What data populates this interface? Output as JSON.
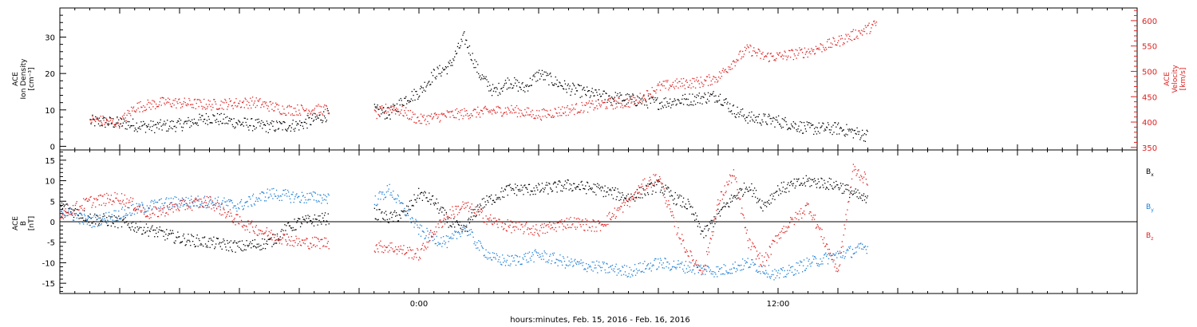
{
  "footer": {
    "xaxis_label": "hours:minutes, Feb. 15, 2016 - Feb. 16, 2016"
  },
  "chart_data": [
    {
      "type": "scatter",
      "panel": "plasma",
      "ylabel_left": [
        "ACE",
        "Ion Density",
        "[cm⁻³]"
      ],
      "ylabel_right": [
        "ACE",
        "Velocity",
        "[km/s]"
      ],
      "xlim_hours": [
        -12,
        24
      ],
      "ylim_left": [
        -1,
        38
      ],
      "ylim_right": [
        345,
        625
      ],
      "yticks_left": [
        0,
        10,
        20,
        30
      ],
      "yticks_right": [
        350,
        400,
        450,
        500,
        550,
        600
      ],
      "grid": false,
      "x_ticklabels": [
        {
          "hour": 0,
          "label": "0:00"
        },
        {
          "hour": 12,
          "label": "12:00"
        }
      ],
      "series": [
        {
          "axis": "left",
          "color": "#000000",
          "points": [
            [
              -11.0,
              7.0
            ],
            [
              -10.0,
              6.5
            ],
            [
              -9.0,
              5.5
            ],
            [
              -8.0,
              6.0
            ],
            [
              -7.0,
              8.0
            ],
            [
              -6.0,
              6.5
            ],
            [
              -5.0,
              5.5
            ],
            [
              -4.0,
              6.0
            ],
            [
              -3.0,
              9.0
            ],
            [
              -2.0,
              null
            ],
            [
              -1.5,
              10.0
            ],
            [
              -1.0,
              9.0
            ],
            [
              -0.5,
              13.0
            ],
            [
              0.0,
              15.0
            ],
            [
              0.5,
              20.0
            ],
            [
              1.0,
              22.0
            ],
            [
              1.5,
              30.0
            ],
            [
              2.0,
              20.0
            ],
            [
              2.5,
              15.0
            ],
            [
              3.0,
              18.0
            ],
            [
              3.5,
              16.0
            ],
            [
              4.0,
              20.0
            ],
            [
              5.0,
              16.0
            ],
            [
              6.0,
              14.0
            ],
            [
              7.0,
              13.0
            ],
            [
              8.0,
              12.0
            ],
            [
              9.0,
              13.0
            ],
            [
              10.0,
              14.0
            ],
            [
              10.5,
              10.0
            ],
            [
              11.0,
              8.0
            ],
            [
              12.0,
              7.0
            ],
            [
              13.0,
              5.0
            ],
            [
              14.0,
              5.0
            ],
            [
              15.0,
              3.0
            ]
          ]
        },
        {
          "axis": "right",
          "color": "#e02020",
          "points": [
            [
              -11.0,
              405
            ],
            [
              -10.0,
              400
            ],
            [
              -9.5,
              430
            ],
            [
              -8.5,
              440
            ],
            [
              -7.0,
              435
            ],
            [
              -5.5,
              440
            ],
            [
              -4.5,
              425
            ],
            [
              -3.5,
              425
            ],
            [
              -3.0,
              425
            ],
            [
              -2.0,
              null
            ],
            [
              -1.5,
              415
            ],
            [
              -1.0,
              430
            ],
            [
              -0.5,
              420
            ],
            [
              0.0,
              405
            ],
            [
              0.5,
              410
            ],
            [
              1.0,
              415
            ],
            [
              2.0,
              420
            ],
            [
              3.0,
              425
            ],
            [
              4.0,
              415
            ],
            [
              5.0,
              425
            ],
            [
              6.0,
              435
            ],
            [
              7.0,
              440
            ],
            [
              7.5,
              450
            ],
            [
              8.0,
              470
            ],
            [
              8.5,
              475
            ],
            [
              9.0,
              478
            ],
            [
              9.5,
              480
            ],
            [
              10.0,
              490
            ],
            [
              10.5,
              520
            ],
            [
              11.0,
              545
            ],
            [
              11.5,
              530
            ],
            [
              12.0,
              530
            ],
            [
              13.0,
              540
            ],
            [
              14.0,
              560
            ],
            [
              15.0,
              585
            ],
            [
              15.3,
              595
            ]
          ]
        }
      ]
    },
    {
      "type": "scatter",
      "panel": "magnetic-field",
      "ylabel_left": [
        "ACE",
        "B",
        "[nT]"
      ],
      "xlim_hours": [
        -12,
        24
      ],
      "ylim": [
        -17.5,
        17.5
      ],
      "yticks": [
        -15,
        -10,
        -5,
        0,
        5,
        10,
        15
      ],
      "zero_line": true,
      "grid": false,
      "x_ticklabels": [
        {
          "hour": 0,
          "label": "0:00"
        },
        {
          "hour": 12,
          "label": "12:00"
        }
      ],
      "legend": [
        {
          "label": "B",
          "sub": "x",
          "color": "#000000"
        },
        {
          "label": "B",
          "sub": "y",
          "color": "#1e7fd6"
        },
        {
          "label": "B",
          "sub": "z",
          "color": "#e02020"
        }
      ],
      "series": [
        {
          "name": "Bx",
          "color": "#000000",
          "points": [
            [
              -12.0,
              4.0
            ],
            [
              -11.0,
              1.0
            ],
            [
              -10.0,
              0.0
            ],
            [
              -9.0,
              -2.0
            ],
            [
              -8.0,
              -4.0
            ],
            [
              -7.0,
              -5.0
            ],
            [
              -6.0,
              -6.0
            ],
            [
              -5.0,
              -5.0
            ],
            [
              -4.5,
              -2.0
            ],
            [
              -4.0,
              0.0
            ],
            [
              -3.0,
              1.0
            ],
            [
              -2.5,
              null
            ],
            [
              -1.5,
              2.0
            ],
            [
              -1.0,
              1.0
            ],
            [
              -0.5,
              2.0
            ],
            [
              0.0,
              7.0
            ],
            [
              0.5,
              5.0
            ],
            [
              1.0,
              0.0
            ],
            [
              1.5,
              -2.0
            ],
            [
              2.0,
              4.0
            ],
            [
              2.5,
              6.0
            ],
            [
              3.0,
              8.0
            ],
            [
              4.0,
              8.0
            ],
            [
              5.0,
              9.0
            ],
            [
              6.0,
              8.0
            ],
            [
              7.0,
              6.0
            ],
            [
              8.0,
              9.0
            ],
            [
              8.5,
              6.0
            ],
            [
              9.0,
              4.0
            ],
            [
              9.5,
              -3.0
            ],
            [
              10.0,
              2.0
            ],
            [
              10.5,
              6.0
            ],
            [
              11.0,
              9.0
            ],
            [
              11.5,
              4.0
            ],
            [
              12.0,
              8.0
            ],
            [
              13.0,
              10.0
            ],
            [
              14.0,
              9.0
            ],
            [
              15.0,
              5.0
            ]
          ]
        },
        {
          "name": "By",
          "color": "#1e7fd6",
          "points": [
            [
              -12.0,
              3.0
            ],
            [
              -11.0,
              0.0
            ],
            [
              -10.0,
              2.0
            ],
            [
              -9.0,
              4.0
            ],
            [
              -8.0,
              5.0
            ],
            [
              -7.0,
              5.0
            ],
            [
              -6.0,
              4.0
            ],
            [
              -5.0,
              7.0
            ],
            [
              -4.0,
              6.0
            ],
            [
              -3.0,
              6.0
            ],
            [
              -2.5,
              null
            ],
            [
              -1.5,
              5.0
            ],
            [
              -1.0,
              8.0
            ],
            [
              -0.5,
              3.0
            ],
            [
              0.0,
              -2.0
            ],
            [
              0.5,
              -4.0
            ],
            [
              1.0,
              -5.0
            ],
            [
              1.5,
              -1.0
            ],
            [
              2.0,
              -6.0
            ],
            [
              2.5,
              -9.0
            ],
            [
              3.0,
              -9.5
            ],
            [
              4.0,
              -8.0
            ],
            [
              5.0,
              -10.0
            ],
            [
              6.0,
              -11.0
            ],
            [
              7.0,
              -12.0
            ],
            [
              8.0,
              -10.0
            ],
            [
              9.0,
              -11.0
            ],
            [
              10.0,
              -12.0
            ],
            [
              11.0,
              -10.0
            ],
            [
              12.0,
              -13.0
            ],
            [
              13.0,
              -10.0
            ],
            [
              14.0,
              -8.0
            ],
            [
              15.0,
              -6.0
            ]
          ]
        },
        {
          "name": "Bz",
          "color": "#e02020",
          "points": [
            [
              -12.0,
              2.0
            ],
            [
              -11.0,
              5.0
            ],
            [
              -10.0,
              6.0
            ],
            [
              -9.0,
              2.0
            ],
            [
              -8.0,
              4.0
            ],
            [
              -7.0,
              5.0
            ],
            [
              -6.0,
              0.0
            ],
            [
              -5.0,
              -3.0
            ],
            [
              -4.0,
              -5.0
            ],
            [
              -3.0,
              -5.0
            ],
            [
              -2.5,
              null
            ],
            [
              -1.5,
              -6.0
            ],
            [
              -1.0,
              -6.0
            ],
            [
              -0.5,
              -7.0
            ],
            [
              0.0,
              -8.0
            ],
            [
              0.5,
              -2.0
            ],
            [
              1.0,
              2.0
            ],
            [
              1.5,
              4.0
            ],
            [
              2.0,
              2.0
            ],
            [
              2.5,
              0.0
            ],
            [
              3.0,
              -1.0
            ],
            [
              4.0,
              -2.0
            ],
            [
              5.0,
              0.0
            ],
            [
              6.0,
              -1.0
            ],
            [
              7.0,
              5.0
            ],
            [
              7.5,
              9.0
            ],
            [
              8.0,
              11.0
            ],
            [
              8.5,
              0.0
            ],
            [
              9.0,
              -8.0
            ],
            [
              9.5,
              -12.0
            ],
            [
              10.0,
              5.0
            ],
            [
              10.5,
              12.0
            ],
            [
              11.0,
              -5.0
            ],
            [
              11.5,
              -10.0
            ],
            [
              12.0,
              -3.0
            ],
            [
              13.0,
              4.0
            ],
            [
              14.0,
              -12.0
            ],
            [
              14.5,
              13.0
            ],
            [
              15.0,
              10.0
            ]
          ]
        }
      ]
    }
  ]
}
